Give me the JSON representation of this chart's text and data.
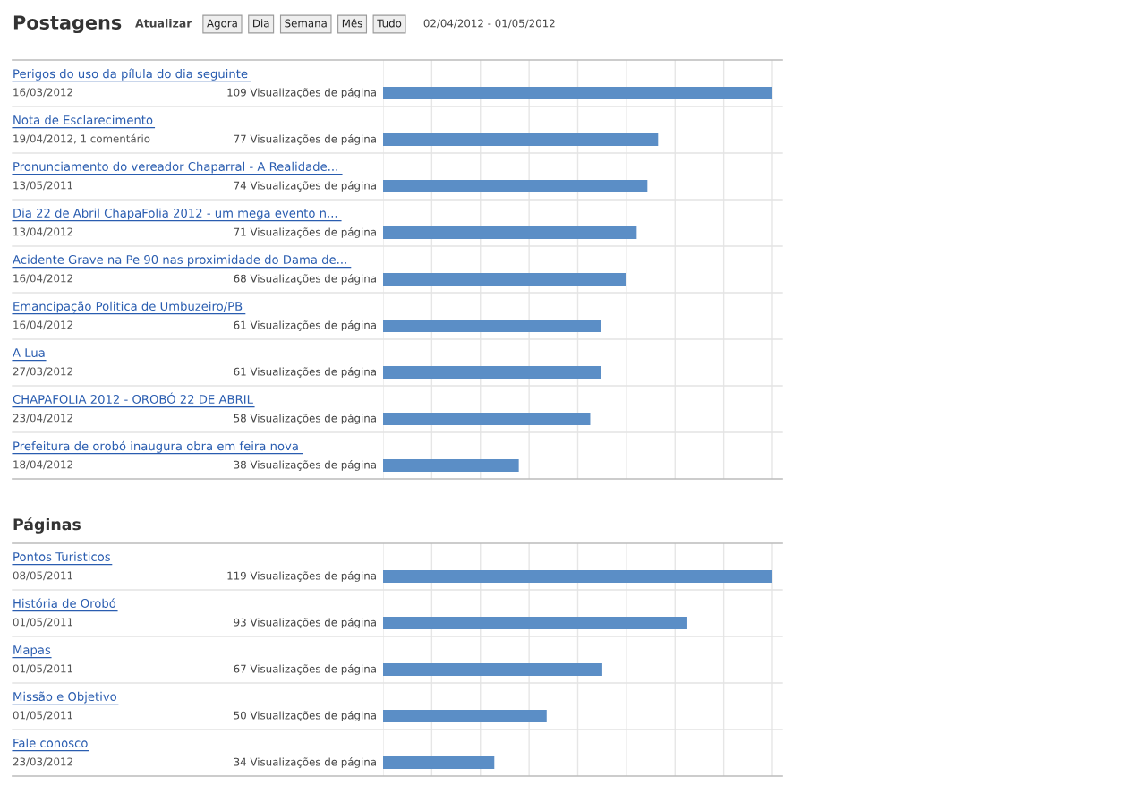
{
  "chart_data": [
    {
      "type": "bar",
      "orientation": "horizontal",
      "title": "Postagens",
      "color": "#5b8ec6",
      "grid": "x",
      "annotations": [
        "Atualizar",
        "Agora",
        "Dia",
        "Semana",
        "Mês",
        "Tudo",
        "02/04/2012 - 01/05/2012"
      ],
      "categories": [
        "Perigos do uso da pílula do dia seguinte\n16/03/2012",
        "Nota de Esclarecimento\n19/04/2012, 1 comentário",
        "Pronunciamento do vereador Chaparral - A Realidade...\n13/05/2011",
        "Dia 22 de Abril ChapaFolia 2012 - um mega evento n...\n13/04/2012",
        "Acidente Grave na Pe 90 nas proximidade do Dama de...\n16/04/2012",
        "Emancipação Politica de Umbuzeiro/PB\n16/04/2012",
        "A Lua\n27/03/2012",
        "CHAPAFOLIA 2012 - OROBÓ 22 DE ABRIL\n23/04/2012",
        "Prefeitura de orobó inaugura obra em feira nova\n18/04/2012"
      ],
      "values": [
        109,
        77,
        74,
        71,
        68,
        61,
        61,
        58,
        38
      ],
      "value_labels": [
        "109 Visualizações de página",
        "77 Visualizações de página",
        "74 Visualizações de página",
        "71 Visualizações de página",
        "68 Visualizações de página",
        "61 Visualizações de página",
        "61 Visualizações de página",
        "58 Visualizações de página",
        "38 Visualizações de página"
      ]
    },
    {
      "type": "bar",
      "orientation": "horizontal",
      "title": "Páginas",
      "color": "#5b8ec6",
      "grid": "x",
      "categories": [
        "Pontos Turisticos\n08/05/2011",
        "História de Orobó\n01/05/2011",
        "Mapas\n01/05/2011",
        "Missão e Objetivo\n01/05/2011",
        "Fale conosco\n23/03/2012"
      ],
      "values": [
        119,
        93,
        67,
        50,
        34
      ],
      "value_labels": [
        "119 Visualizações de página",
        "93 Visualizações de página",
        "67 Visualizações de página",
        "50 Visualizações de página",
        "34 Visualizações de página"
      ]
    }
  ]
}
